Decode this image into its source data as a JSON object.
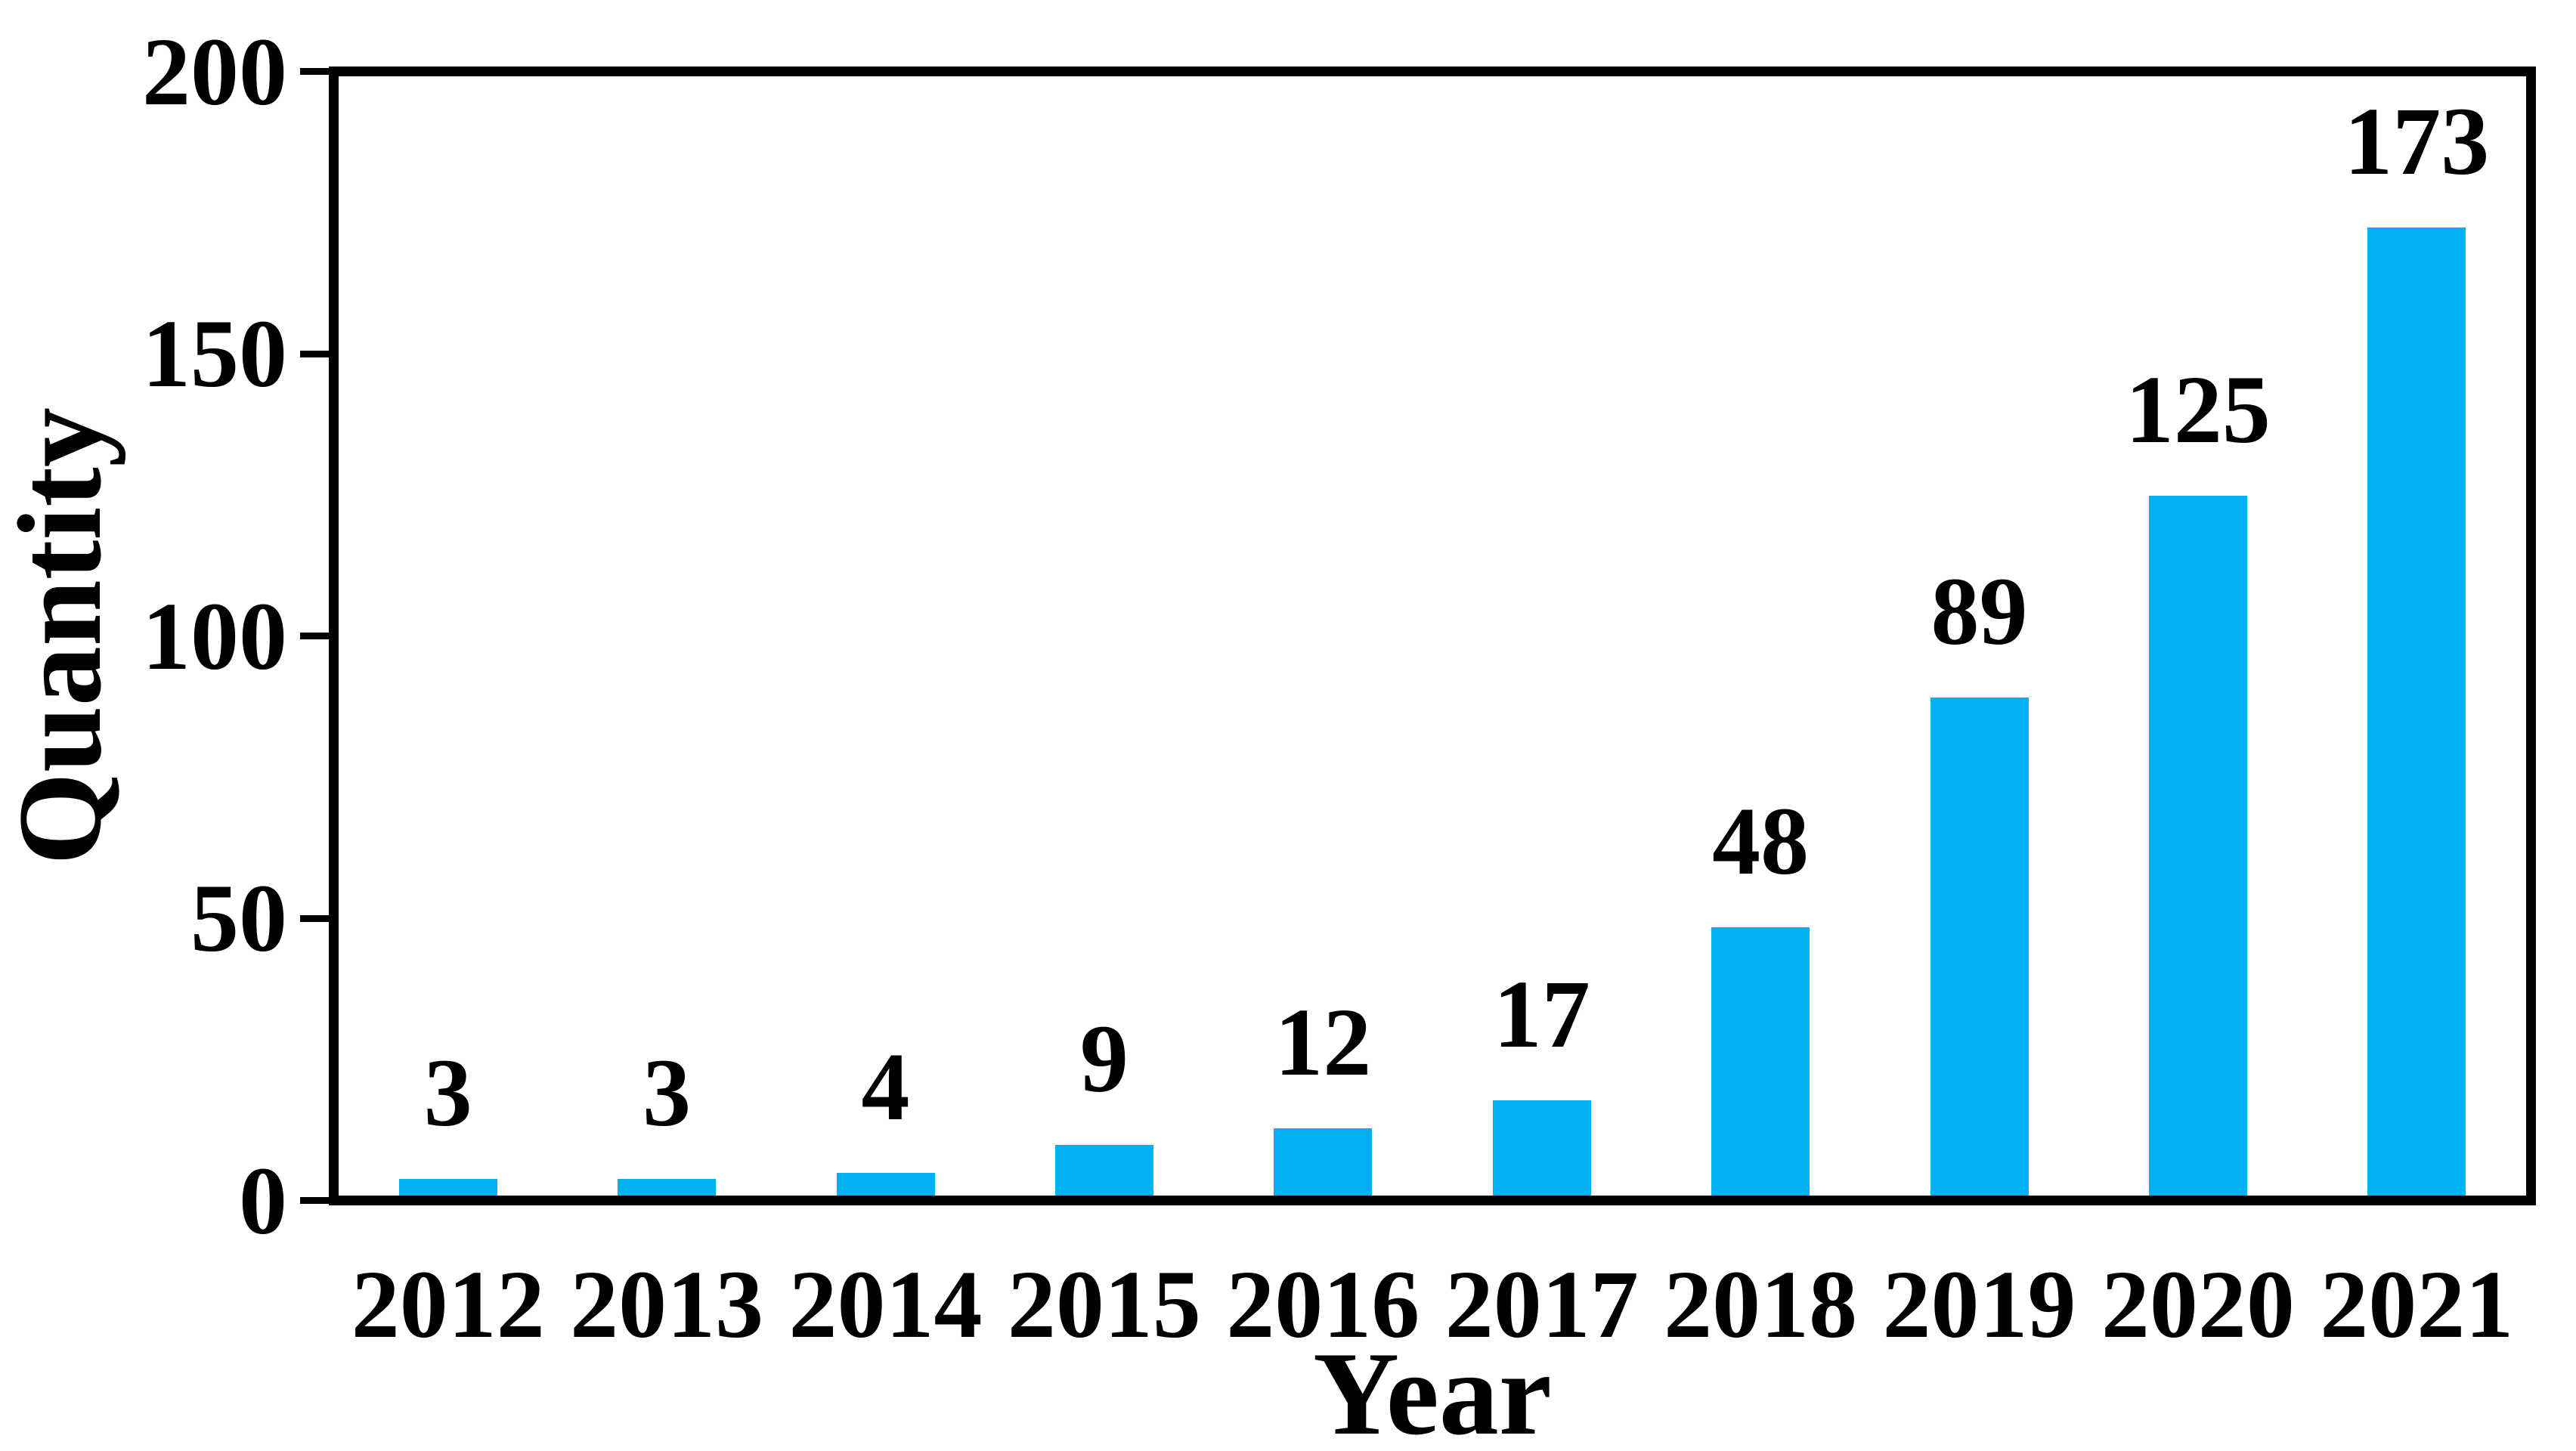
{
  "chart_data": {
    "type": "bar",
    "title": "",
    "xlabel": "Year",
    "ylabel": "Quantity",
    "categories": [
      "2012",
      "2013",
      "2014",
      "2015",
      "2016",
      "2017",
      "2018",
      "2019",
      "2020",
      "2021"
    ],
    "values": [
      3,
      3,
      4,
      9,
      12,
      17,
      48,
      89,
      125,
      173
    ],
    "show_data_labels": true,
    "ylim": [
      0,
      200
    ],
    "yticks": [
      0,
      50,
      100,
      150,
      200
    ],
    "grid": false,
    "legend_position": "none",
    "bar_color": "#00B0F0",
    "axis_color": "#000000",
    "text_color": "#000000",
    "background_color": "#FFFFFF"
  }
}
